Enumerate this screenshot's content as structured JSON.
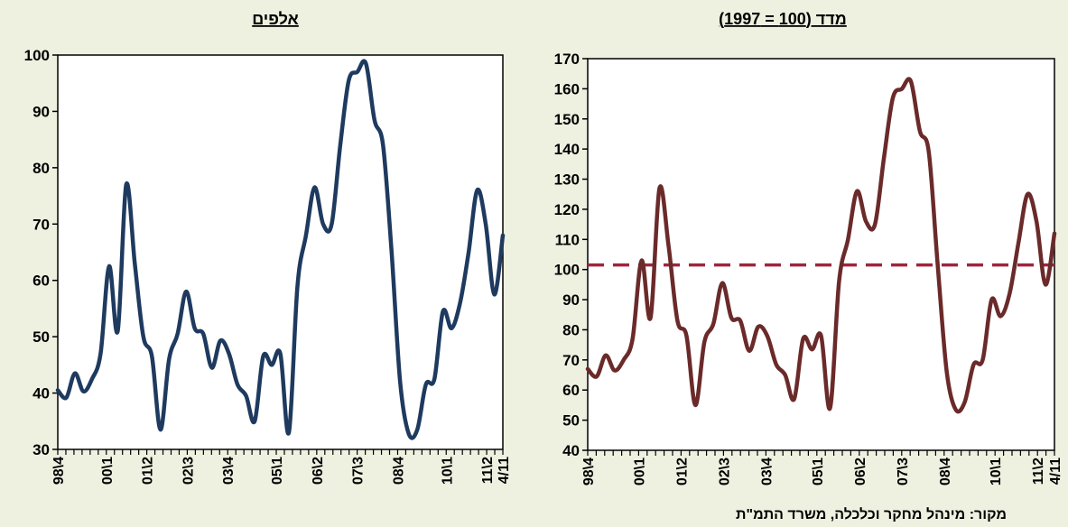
{
  "source_note": "מקור: מינהל מחקר וכלכלה, משרד התמ\"ת",
  "chart_data": [
    {
      "type": "line",
      "title": "אלפים",
      "ylim": [
        30,
        100
      ],
      "yticks": [
        30,
        40,
        50,
        60,
        70,
        80,
        90,
        100
      ],
      "grid": false,
      "legend": "none",
      "x_tick_labels": [
        "98\\4",
        "00\\1",
        "01\\2",
        "02\\3",
        "03\\4",
        "05\\1",
        "06\\2",
        "07\\3",
        "08\\4",
        "10\\1",
        "11\\2",
        "4/11"
      ],
      "x_tick_positions": [
        0,
        6,
        11,
        16,
        21,
        27,
        32,
        37,
        42,
        48,
        53,
        55
      ],
      "x_range": [
        0,
        55
      ],
      "colors": {
        "line": "#1f3a5f"
      },
      "series": [
        {
          "values": [
            40.5,
            39.2,
            43.5,
            40.3,
            42.5,
            47,
            62.5,
            51,
            77,
            63,
            50,
            46.5,
            33.5,
            46,
            50.5,
            58,
            51.5,
            50.5,
            44.5,
            49.3,
            47,
            41.5,
            39.5,
            35,
            46.5,
            45,
            47,
            33,
            59,
            68,
            76.5,
            70,
            70,
            84,
            95.5,
            97,
            98.5,
            88.5,
            84,
            65,
            42,
            32.8,
            33.5,
            41.5,
            42.5,
            54.5,
            51.5,
            56,
            65,
            76,
            70,
            57.5,
            68
          ]
        }
      ]
    },
    {
      "type": "line",
      "title": "מדד (100 = 1997)",
      "ylim": [
        40,
        170
      ],
      "yticks": [
        40,
        50,
        60,
        70,
        80,
        90,
        100,
        110,
        120,
        130,
        140,
        150,
        160,
        170
      ],
      "grid": false,
      "legend": "none",
      "x_tick_labels": [
        "98\\4",
        "00\\1",
        "01\\2",
        "02\\3",
        "03\\4",
        "05\\1",
        "06\\2",
        "07\\3",
        "08\\4",
        "10\\1",
        "11\\2",
        "4/11"
      ],
      "x_tick_positions": [
        0,
        6,
        11,
        16,
        21,
        27,
        32,
        37,
        42,
        48,
        53,
        55
      ],
      "x_range": [
        0,
        55
      ],
      "reference_line": 101.5,
      "colors": {
        "line": "#6b2a2a",
        "reference": "#a0253c"
      },
      "series": [
        {
          "values": [
            67,
            64.5,
            71.5,
            66.5,
            70,
            77,
            103,
            84,
            127,
            108,
            83,
            78,
            55,
            76,
            82,
            95.5,
            84,
            83,
            73,
            81,
            78,
            68.5,
            65,
            57,
            77,
            73.5,
            78,
            54,
            96,
            110,
            126,
            116,
            115,
            137,
            157,
            160,
            162.5,
            146,
            139,
            101,
            66,
            53.5,
            56,
            68.5,
            70,
            90,
            84.5,
            92,
            109,
            125,
            116,
            95,
            112
          ]
        }
      ]
    }
  ]
}
